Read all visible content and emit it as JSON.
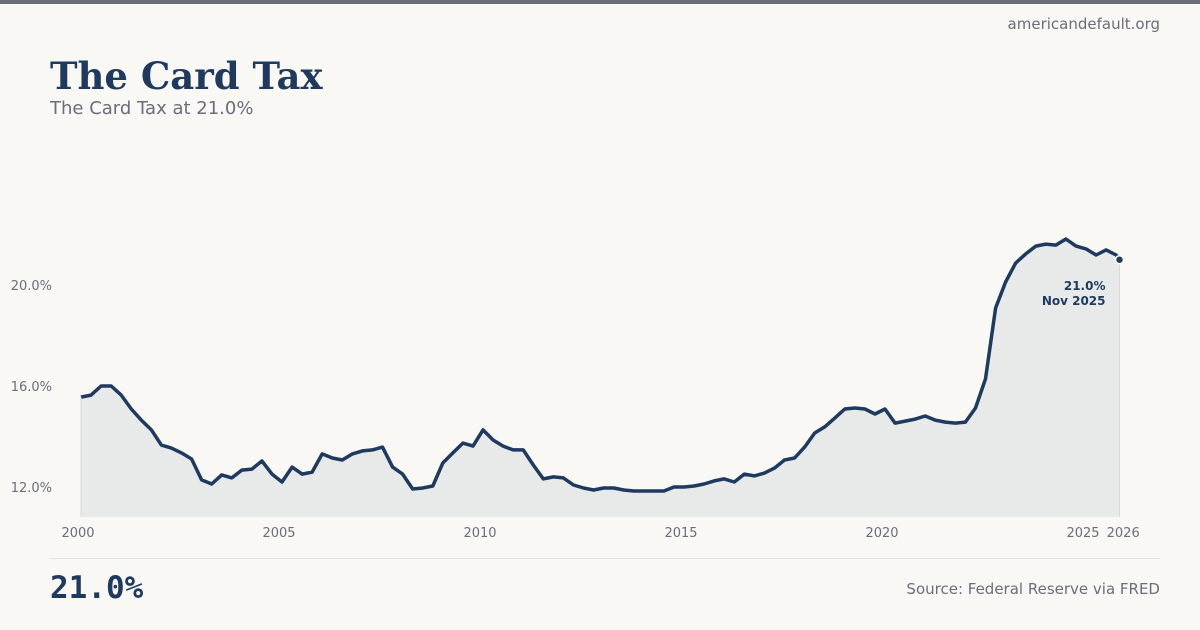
{
  "site": "americandefault.org",
  "header": {
    "title": "The Card Tax",
    "subtitle": "The Card Tax at 21.0%"
  },
  "footer": {
    "big_value": "21.0%",
    "source": "Source: Federal Reserve via FRED"
  },
  "colors": {
    "line": "#1e3a5f",
    "fill": "#e8eaea",
    "text_muted": "#6b6e7a",
    "background": "#f9f8f5"
  },
  "chart_data": {
    "type": "area",
    "title": "",
    "xlabel": "",
    "ylabel": "",
    "ylim": [
      10.8,
      24.5
    ],
    "xlim": [
      "2000-01",
      "2026-01"
    ],
    "y_ticks": [
      {
        "value": 12,
        "label": "12.0%"
      },
      {
        "value": 16,
        "label": "16.0%"
      },
      {
        "value": 20,
        "label": "20.0%"
      }
    ],
    "x_ticks": [
      {
        "value": 2000,
        "label": "2000"
      },
      {
        "value": 2005,
        "label": "2005"
      },
      {
        "value": 2010,
        "label": "2010"
      },
      {
        "value": 2015,
        "label": "2015"
      },
      {
        "value": 2020,
        "label": "2020"
      },
      {
        "value": 2025,
        "label": "2025"
      },
      {
        "value": 2026,
        "label": "2026"
      }
    ],
    "grid": false,
    "annotation": {
      "value_label": "21.0%",
      "date_label": "Nov 2025"
    },
    "x": [
      "2000-01",
      "2000-04",
      "2000-07",
      "2000-10",
      "2001-01",
      "2001-04",
      "2001-07",
      "2001-10",
      "2002-01",
      "2002-04",
      "2002-07",
      "2002-10",
      "2003-01",
      "2003-04",
      "2003-07",
      "2003-10",
      "2004-01",
      "2004-04",
      "2004-07",
      "2004-10",
      "2005-01",
      "2005-04",
      "2005-07",
      "2005-10",
      "2006-01",
      "2006-04",
      "2006-07",
      "2006-10",
      "2007-01",
      "2007-04",
      "2007-07",
      "2007-10",
      "2008-01",
      "2008-04",
      "2008-07",
      "2008-10",
      "2009-01",
      "2009-04",
      "2009-07",
      "2009-10",
      "2010-01",
      "2010-04",
      "2010-07",
      "2010-10",
      "2011-01",
      "2011-04",
      "2011-07",
      "2011-10",
      "2012-01",
      "2012-04",
      "2012-07",
      "2012-10",
      "2013-01",
      "2013-04",
      "2013-07",
      "2013-10",
      "2014-01",
      "2014-04",
      "2014-07",
      "2014-10",
      "2015-01",
      "2015-04",
      "2015-07",
      "2015-10",
      "2016-01",
      "2016-04",
      "2016-07",
      "2016-10",
      "2017-01",
      "2017-04",
      "2017-07",
      "2017-10",
      "2018-01",
      "2018-04",
      "2018-07",
      "2018-10",
      "2019-01",
      "2019-04",
      "2019-07",
      "2019-10",
      "2020-01",
      "2020-04",
      "2020-07",
      "2020-10",
      "2021-01",
      "2021-04",
      "2021-07",
      "2021-10",
      "2022-01",
      "2022-04",
      "2022-07",
      "2022-10",
      "2023-01",
      "2023-04",
      "2023-07",
      "2023-10",
      "2024-01",
      "2024-04",
      "2024-07",
      "2024-10",
      "2025-01",
      "2025-04",
      "2025-07",
      "2025-10",
      "2025-11"
    ],
    "series": [
      {
        "values": [
          15.56,
          15.64,
          16.0,
          16.0,
          15.64,
          15.09,
          14.65,
          14.26,
          13.66,
          13.54,
          13.35,
          13.11,
          12.28,
          12.12,
          12.48,
          12.36,
          12.67,
          12.71,
          13.03,
          12.51,
          12.2,
          12.79,
          12.51,
          12.59,
          13.31,
          13.15,
          13.07,
          13.31,
          13.43,
          13.47,
          13.58,
          12.79,
          12.51,
          11.92,
          11.96,
          12.04,
          12.95,
          13.35,
          13.74,
          13.62,
          14.26,
          13.86,
          13.62,
          13.47,
          13.47,
          12.87,
          12.32,
          12.4,
          12.36,
          12.08,
          11.96,
          11.88,
          11.96,
          11.96,
          11.88,
          11.84,
          11.84,
          11.84,
          11.84,
          12.0,
          12.0,
          12.04,
          12.12,
          12.24,
          12.32,
          12.2,
          12.51,
          12.44,
          12.55,
          12.75,
          13.07,
          13.15,
          13.58,
          14.14,
          14.38,
          14.73,
          15.09,
          15.13,
          15.09,
          14.89,
          15.09,
          14.53,
          14.61,
          14.69,
          14.81,
          14.65,
          14.57,
          14.53,
          14.57,
          15.13,
          16.28,
          19.09,
          20.12,
          20.87,
          21.23,
          21.54,
          21.62,
          21.58,
          21.82,
          21.54,
          21.43,
          21.19,
          21.39,
          21.19,
          21.0
        ]
      }
    ]
  }
}
